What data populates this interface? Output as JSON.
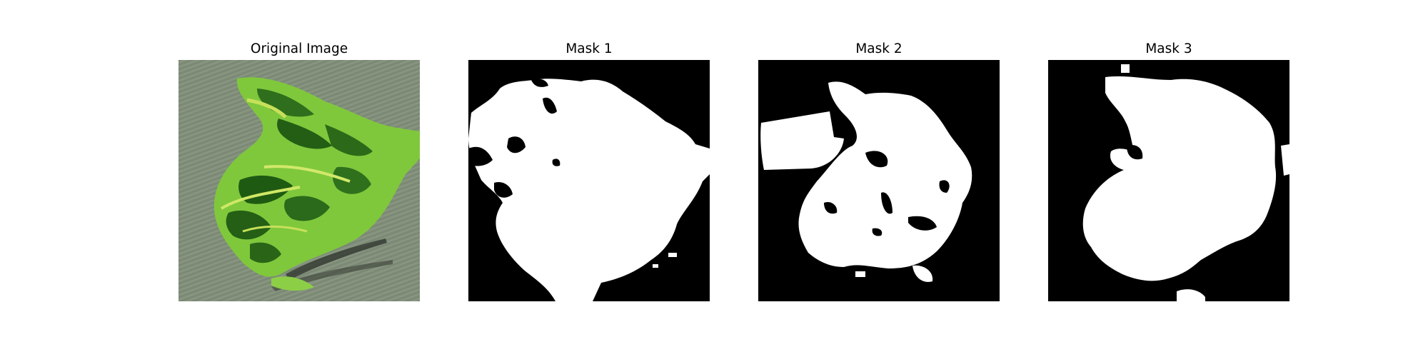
{
  "panels": [
    {
      "title": "Original Image"
    },
    {
      "title": "Mask 1"
    },
    {
      "title": "Mask 2"
    },
    {
      "title": "Mask 3"
    }
  ],
  "colors": {
    "background": "#ffffff",
    "mask_foreground": "#ffffff",
    "mask_background": "#000000",
    "leaf_green": "#7cc63a",
    "leaf_dark": "#1f5a12",
    "ground_gray": "#7e8c78"
  }
}
